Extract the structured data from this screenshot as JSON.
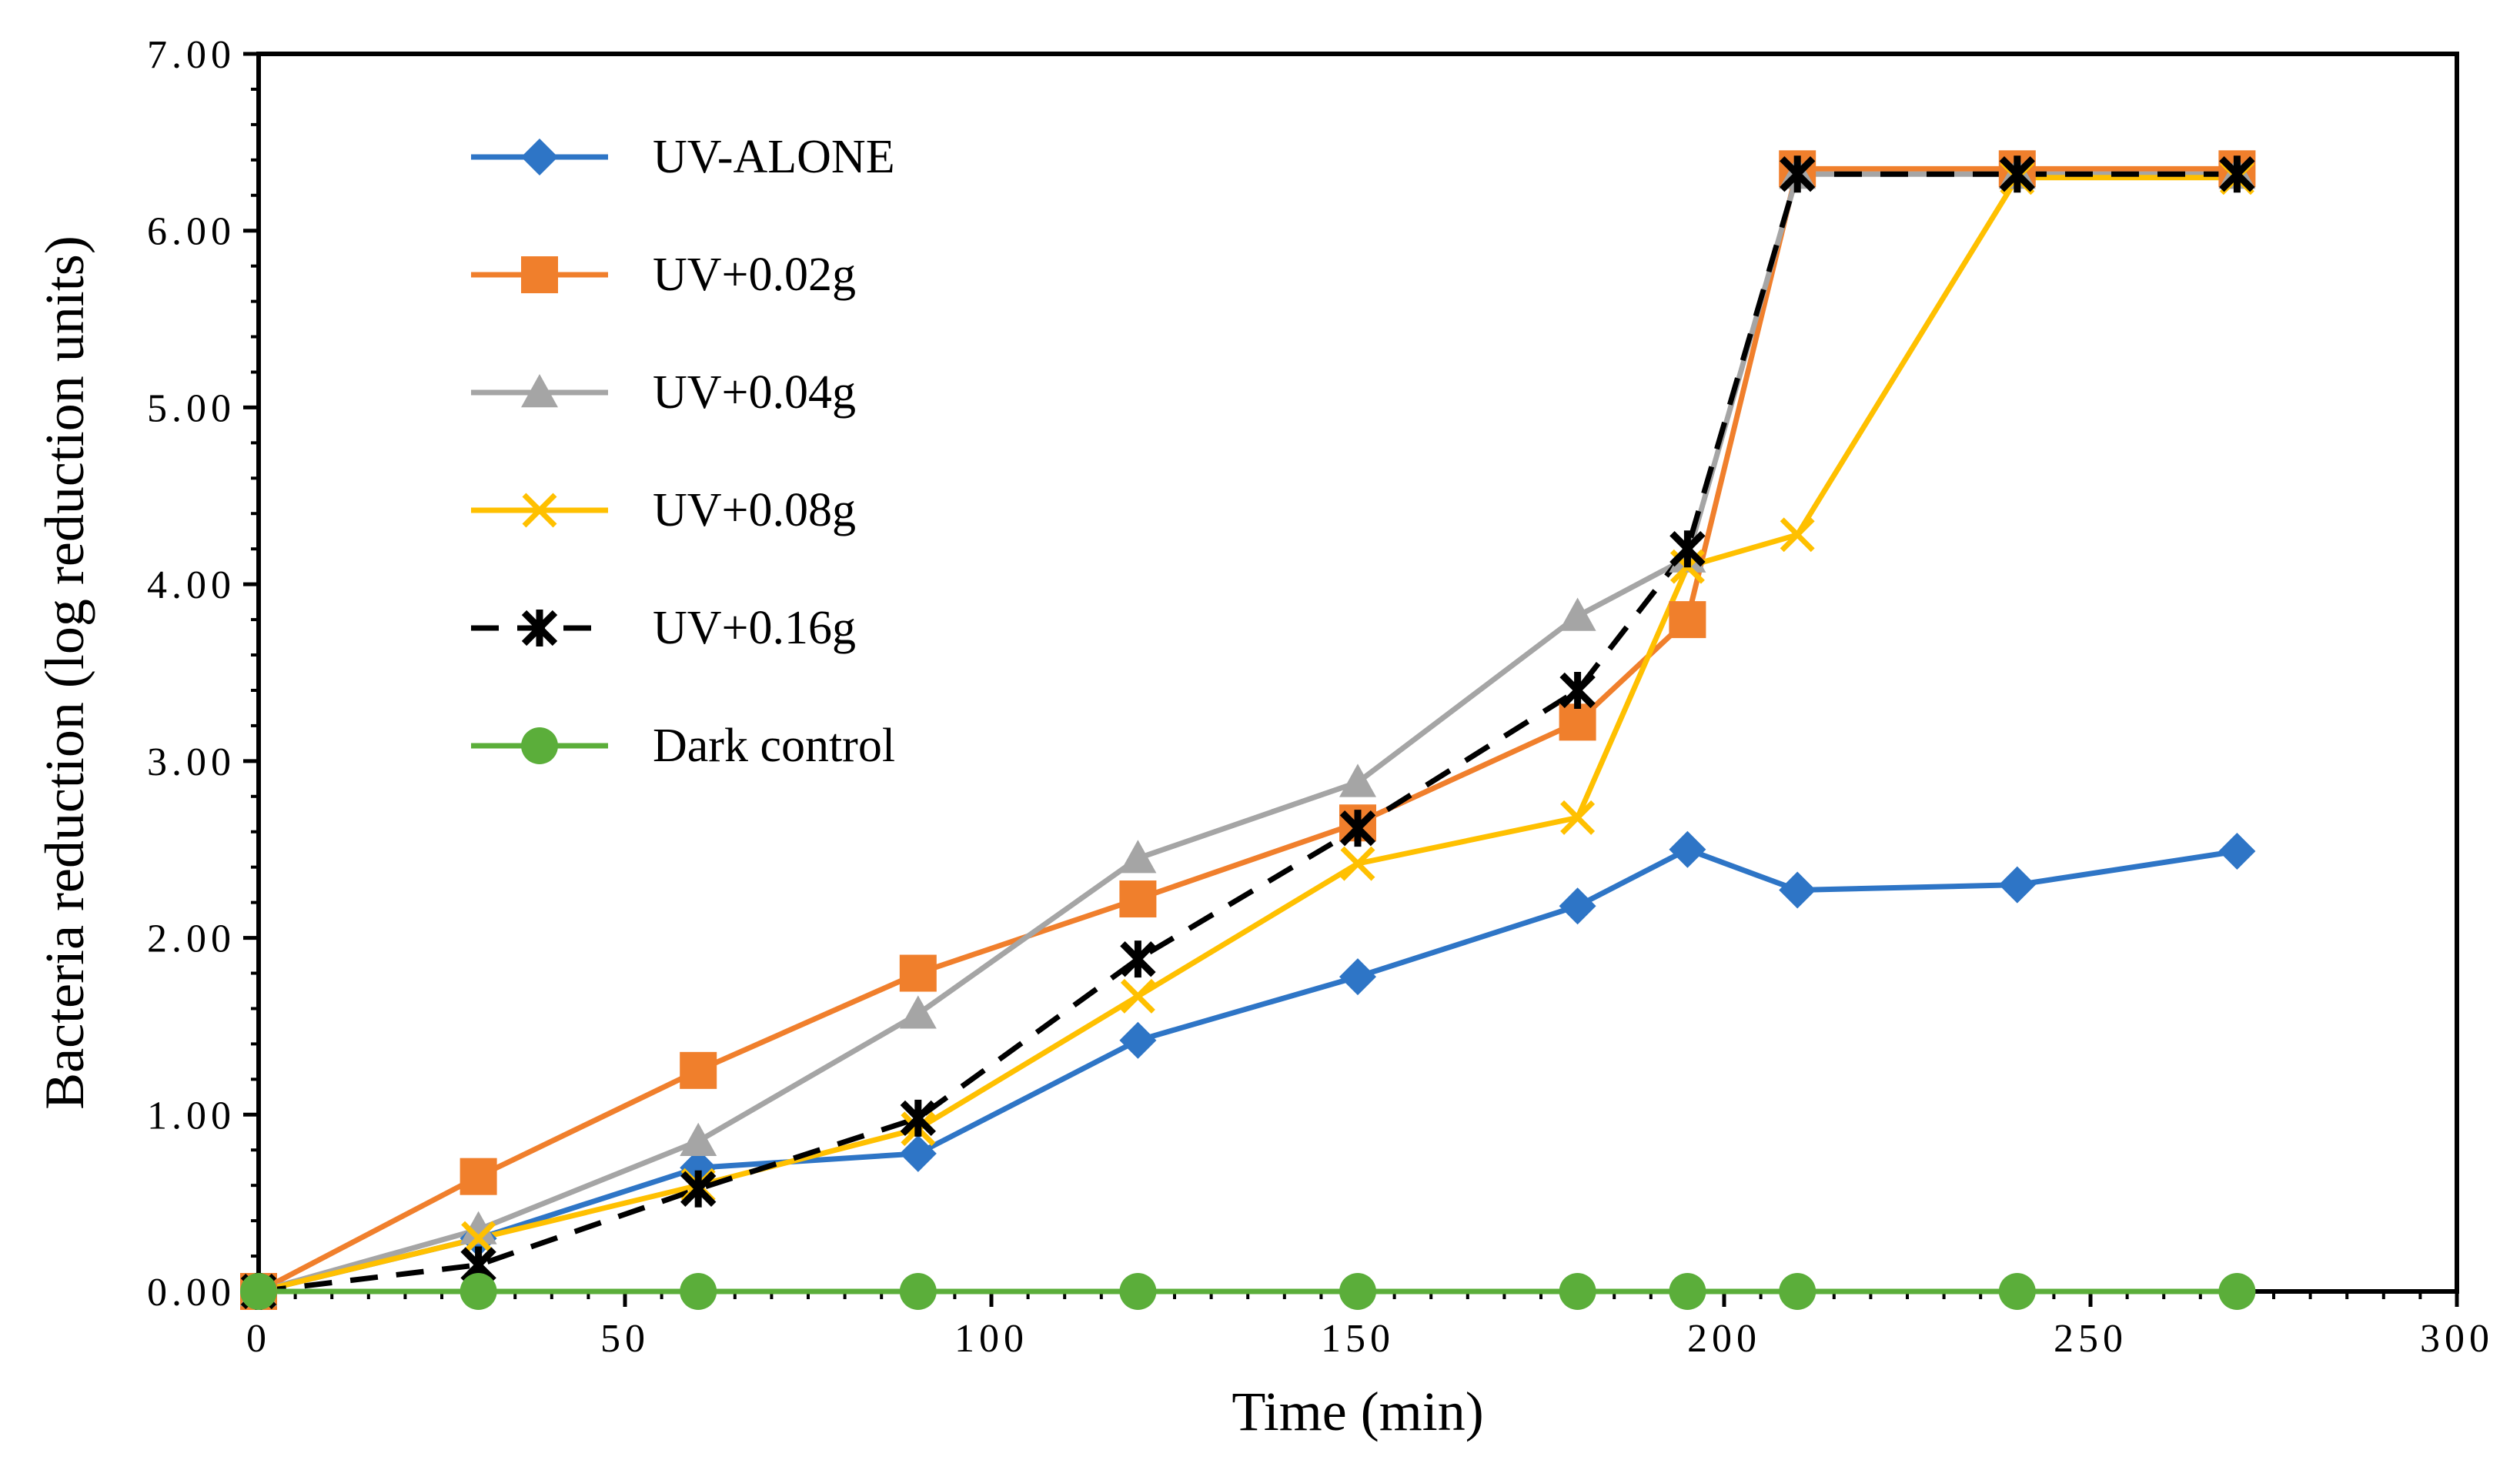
{
  "chart_data": {
    "type": "line",
    "title": "",
    "xlabel": "Time (min)",
    "ylabel": "Bacteria reduction (log reduction units)",
    "xlim": [
      0,
      300
    ],
    "ylim": [
      0,
      7
    ],
    "x_ticks": [
      0,
      50,
      100,
      150,
      200,
      250,
      300
    ],
    "x_tick_labels": [
      "0",
      "50",
      "100",
      "150",
      "200",
      "250",
      "300"
    ],
    "y_ticks": [
      0,
      1,
      2,
      3,
      4,
      5,
      6,
      7
    ],
    "y_tick_labels": [
      "0.00",
      "1.00",
      "2.00",
      "3.00",
      "4.00",
      "5.00",
      "6.00",
      "7.00"
    ],
    "grid": false,
    "legend_position": "top-left",
    "x": [
      0,
      30,
      60,
      90,
      120,
      150,
      180,
      195,
      210,
      240,
      270
    ],
    "series": [
      {
        "name": "UV-ALONE",
        "color": "#2E75C6",
        "marker": "diamond",
        "dash": false,
        "values": [
          0,
          0.3,
          0.7,
          0.78,
          1.42,
          1.78,
          2.18,
          2.5,
          2.27,
          2.3,
          2.49
        ]
      },
      {
        "name": "UV+0.02g",
        "color": "#F07F2C",
        "marker": "square",
        "dash": false,
        "values": [
          0,
          0.65,
          1.25,
          1.8,
          2.22,
          2.65,
          3.22,
          3.8,
          6.35,
          6.35,
          6.35
        ]
      },
      {
        "name": "UV+0.04g",
        "color": "#A5A5A5",
        "marker": "triangle",
        "dash": false,
        "values": [
          0,
          0.35,
          0.85,
          1.57,
          2.45,
          2.88,
          3.82,
          4.15,
          6.32,
          6.32,
          6.32
        ]
      },
      {
        "name": "UV+0.08g",
        "color": "#FFC000",
        "marker": "x",
        "dash": false,
        "values": [
          0,
          0.3,
          0.6,
          0.92,
          1.67,
          2.42,
          2.68,
          4.1,
          4.28,
          6.3,
          6.3
        ]
      },
      {
        "name": "UV+0.16g",
        "color": "#000000",
        "marker": "asterisk",
        "dash": true,
        "values": [
          0,
          0.15,
          0.58,
          0.98,
          1.88,
          2.62,
          3.4,
          4.2,
          6.32,
          6.32,
          6.32
        ]
      },
      {
        "name": "Dark control",
        "color": "#5BAE3A",
        "marker": "circle",
        "dash": false,
        "values": [
          0,
          0,
          0,
          0,
          0,
          0,
          0,
          0,
          0,
          0,
          0
        ]
      }
    ]
  }
}
